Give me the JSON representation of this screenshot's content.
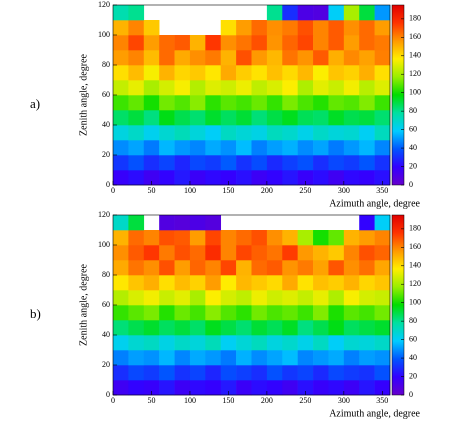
{
  "chart_data": [
    {
      "type": "heatmap",
      "panel_label": "a)",
      "x_label": "Azimuth angle, degree",
      "y_label": "Zenith angle, degree",
      "xlim": [
        0,
        360
      ],
      "ylim": [
        0,
        120
      ],
      "xticks": [
        0,
        50,
        100,
        150,
        200,
        250,
        300,
        350
      ],
      "yticks": [
        0,
        20,
        40,
        60,
        80,
        100,
        120
      ],
      "zlim": [
        0,
        195
      ],
      "zticks": [
        0,
        20,
        40,
        60,
        80,
        100,
        120,
        140,
        160,
        180
      ],
      "colors": [
        "#6600cc",
        "#3300ff",
        "#0055ff",
        "#00ccff",
        "#00e0a0",
        "#00dd00",
        "#99ee00",
        "#ffee00",
        "#ff9900",
        "#ff3300",
        "#e00000"
      ],
      "xbins": [
        0,
        20,
        40,
        60,
        80,
        100,
        120,
        140,
        160,
        180,
        200,
        220,
        240,
        260,
        280,
        300,
        320,
        340,
        360
      ],
      "ybins": [
        0,
        10,
        20,
        30,
        40,
        50,
        60,
        70,
        80,
        90,
        100,
        110,
        120
      ],
      "z": [
        [
          18,
          22,
          15,
          20,
          25,
          17,
          21,
          19,
          23,
          16,
          20,
          24,
          18,
          22,
          15,
          21,
          19,
          23
        ],
        [
          32,
          38,
          30,
          35,
          28,
          36,
          33,
          40,
          31,
          37,
          29,
          34,
          38,
          30,
          36,
          33,
          39,
          31
        ],
        [
          48,
          52,
          45,
          55,
          50,
          47,
          53,
          49,
          56,
          46,
          51,
          54,
          48,
          52,
          45,
          50,
          55,
          47
        ],
        [
          65,
          70,
          62,
          68,
          73,
          66,
          60,
          71,
          67,
          64,
          72,
          69,
          63,
          70,
          66,
          68,
          61,
          72
        ],
        [
          85,
          90,
          82,
          95,
          88,
          84,
          92,
          86,
          91,
          83,
          89,
          94,
          87,
          85,
          93,
          88,
          90,
          84
        ],
        [
          105,
          110,
          100,
          112,
          108,
          115,
          103,
          109,
          106,
          111,
          104,
          113,
          107,
          102,
          110,
          108,
          114,
          105
        ],
        [
          125,
          132,
          120,
          128,
          135,
          122,
          130,
          127,
          133,
          124,
          129,
          136,
          121,
          131,
          126,
          134,
          123,
          130
        ],
        [
          140,
          148,
          135,
          150,
          142,
          145,
          138,
          152,
          144,
          139,
          147,
          141,
          149,
          136,
          146,
          143,
          151,
          140
        ],
        [
          155,
          160,
          148,
          165,
          152,
          158,
          162,
          150,
          170,
          156,
          149,
          163,
          157,
          168,
          151,
          159,
          154,
          161
        ],
        [
          160,
          172,
          155,
          165,
          168,
          150,
          175,
          158,
          163,
          170,
          157,
          166,
          172,
          160,
          168,
          155,
          165,
          162
        ],
        [
          150,
          160,
          145,
          null,
          null,
          null,
          null,
          140,
          155,
          165,
          158,
          162,
          170,
          160,
          168,
          158,
          165,
          155
        ],
        [
          75,
          80,
          null,
          null,
          null,
          null,
          null,
          null,
          null,
          null,
          80,
          30,
          10,
          8,
          60,
          120,
          90,
          50
        ]
      ]
    },
    {
      "type": "heatmap",
      "panel_label": "b)",
      "x_label": "Azimuth angle, degree",
      "y_label": "Zenith angle, degree",
      "xlim": [
        0,
        360
      ],
      "ylim": [
        0,
        120
      ],
      "xticks": [
        0,
        50,
        100,
        150,
        200,
        250,
        300,
        350
      ],
      "yticks": [
        0,
        20,
        40,
        60,
        80,
        100,
        120
      ],
      "zlim": [
        0,
        195
      ],
      "zticks": [
        0,
        20,
        40,
        60,
        80,
        100,
        120,
        140,
        160,
        180
      ],
      "colors": [
        "#6600cc",
        "#3300ff",
        "#0055ff",
        "#00ccff",
        "#00e0a0",
        "#00dd00",
        "#99ee00",
        "#ffee00",
        "#ff9900",
        "#ff3300",
        "#e00000"
      ],
      "xbins": [
        0,
        20,
        40,
        60,
        80,
        100,
        120,
        140,
        160,
        180,
        200,
        220,
        240,
        260,
        280,
        300,
        320,
        340,
        360
      ],
      "ybins": [
        0,
        10,
        20,
        30,
        40,
        50,
        60,
        70,
        80,
        90,
        100,
        110,
        120
      ],
      "z": [
        [
          15,
          20,
          18,
          24,
          16,
          21,
          19,
          25,
          17,
          22,
          20,
          15,
          23,
          18,
          21,
          16,
          24,
          19
        ],
        [
          30,
          36,
          33,
          39,
          31,
          35,
          28,
          37,
          34,
          30,
          38,
          32,
          35,
          29,
          36,
          33,
          31,
          38
        ],
        [
          46,
          51,
          49,
          55,
          47,
          53,
          50,
          45,
          54,
          48,
          52,
          56,
          47,
          50,
          53,
          46,
          51,
          49
        ],
        [
          62,
          68,
          71,
          64,
          70,
          66,
          73,
          61,
          67,
          72,
          65,
          69,
          63,
          71,
          60,
          68,
          66,
          70
        ],
        [
          83,
          88,
          92,
          86,
          90,
          85,
          94,
          89,
          84,
          91,
          87,
          93,
          82,
          88,
          95,
          86,
          89,
          92
        ],
        [
          104,
          109,
          113,
          102,
          111,
          106,
          115,
          108,
          103,
          112,
          107,
          110,
          105,
          114,
          101,
          109,
          106,
          112
        ],
        [
          122,
          129,
          134,
          126,
          131,
          120,
          136,
          128,
          124,
          133,
          127,
          130,
          125,
          132,
          121,
          135,
          128,
          126
        ],
        [
          138,
          146,
          151,
          140,
          148,
          143,
          155,
          137,
          149,
          145,
          141,
          152,
          139,
          147,
          144,
          150,
          142,
          146
        ],
        [
          152,
          163,
          158,
          170,
          155,
          166,
          160,
          172,
          150,
          165,
          168,
          157,
          162,
          154,
          169,
          158,
          164,
          153
        ],
        [
          158,
          168,
          175,
          162,
          170,
          165,
          178,
          160,
          172,
          167,
          163,
          174,
          156,
          150,
          145,
          160,
          170,
          166
        ],
        [
          150,
          165,
          160,
          170,
          168,
          155,
          172,
          160,
          165,
          170,
          158,
          150,
          120,
          100,
          110,
          150,
          155,
          160
        ],
        [
          70,
          90,
          null,
          8,
          6,
          10,
          7,
          null,
          null,
          null,
          null,
          null,
          null,
          null,
          null,
          null,
          20,
          60
        ]
      ]
    }
  ]
}
